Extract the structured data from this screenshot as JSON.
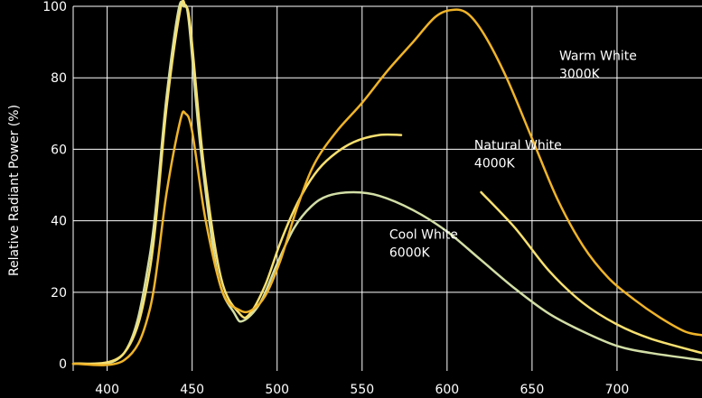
{
  "chart_data": {
    "type": "line",
    "ylabel": "Relative Radiant Power (%)",
    "xlim": [
      380,
      750
    ],
    "ylim": [
      -2,
      100
    ],
    "xticks": [
      400,
      450,
      500,
      550,
      600,
      650,
      700
    ],
    "yticks": [
      0,
      20,
      40,
      60,
      80,
      100
    ],
    "grid": true,
    "series": [
      {
        "color": "#d2dea6",
        "points": [
          [
            380,
            0
          ],
          [
            410,
            3
          ],
          [
            425,
            30
          ],
          [
            435,
            75
          ],
          [
            442,
            99
          ],
          [
            445,
            100
          ],
          [
            448,
            96
          ],
          [
            455,
            60
          ],
          [
            465,
            25
          ],
          [
            475,
            14
          ],
          [
            480,
            12
          ],
          [
            490,
            17
          ],
          [
            500,
            28
          ],
          [
            510,
            38
          ],
          [
            520,
            44
          ],
          [
            530,
            47
          ],
          [
            545,
            48
          ],
          [
            560,
            47
          ],
          [
            580,
            43
          ],
          [
            600,
            37
          ],
          [
            620,
            29
          ],
          [
            640,
            21
          ],
          [
            660,
            14
          ],
          [
            680,
            9
          ],
          [
            700,
            5
          ],
          [
            720,
            3
          ],
          [
            750,
            1
          ]
        ]
      },
      {
        "color": "#f7e070",
        "points": [
          [
            380,
            0
          ],
          [
            410,
            3
          ],
          [
            425,
            26
          ],
          [
            435,
            72
          ],
          [
            443,
            99
          ],
          [
            446,
            100
          ],
          [
            449,
            94
          ],
          [
            457,
            55
          ],
          [
            467,
            24
          ],
          [
            478,
            14
          ],
          [
            484,
            14
          ],
          [
            493,
            22
          ],
          [
            502,
            34
          ],
          [
            512,
            45
          ],
          [
            522,
            53
          ],
          [
            532,
            58
          ],
          [
            545,
            62
          ],
          [
            560,
            64
          ],
          [
            573,
            64
          ]
        ]
      },
      {
        "color": "#f7e070",
        "points": [
          [
            620,
            48
          ],
          [
            640,
            38
          ],
          [
            660,
            26
          ],
          [
            680,
            17
          ],
          [
            700,
            11
          ],
          [
            720,
            7
          ],
          [
            750,
            3
          ]
        ]
      },
      {
        "color": "#f0b429",
        "points": [
          [
            380,
            0
          ],
          [
            410,
            1
          ],
          [
            425,
            15
          ],
          [
            435,
            48
          ],
          [
            443,
            68
          ],
          [
            446,
            70
          ],
          [
            450,
            65
          ],
          [
            458,
            40
          ],
          [
            468,
            20
          ],
          [
            478,
            15
          ],
          [
            485,
            15
          ],
          [
            493,
            19
          ],
          [
            502,
            29
          ],
          [
            512,
            44
          ],
          [
            522,
            56
          ],
          [
            535,
            65
          ],
          [
            550,
            73
          ],
          [
            565,
            82
          ],
          [
            580,
            90
          ],
          [
            593,
            97
          ],
          [
            603,
            99
          ],
          [
            612,
            98
          ],
          [
            622,
            92
          ],
          [
            635,
            80
          ],
          [
            650,
            63
          ],
          [
            665,
            46
          ],
          [
            680,
            33
          ],
          [
            695,
            24
          ],
          [
            710,
            18
          ],
          [
            725,
            13
          ],
          [
            740,
            9
          ],
          [
            750,
            8
          ]
        ]
      }
    ],
    "annotations": [
      {
        "x": 566,
        "y": 35,
        "lines": [
          "Cool White",
          "6000K"
        ]
      },
      {
        "x": 616,
        "y": 60,
        "lines": [
          "Natural White",
          "4000K"
        ]
      },
      {
        "x": 666,
        "y": 85,
        "lines": [
          "Warm White",
          "3000K"
        ]
      }
    ]
  }
}
